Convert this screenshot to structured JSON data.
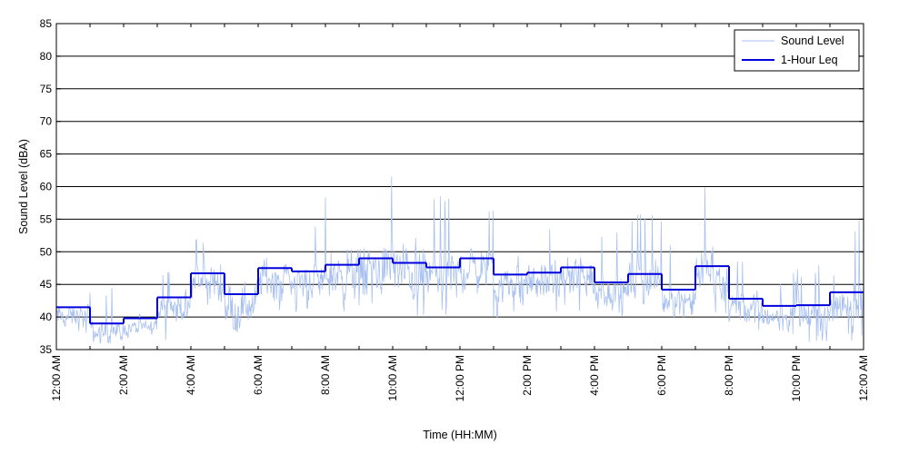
{
  "chart_data": {
    "type": "line",
    "xlabel": "Time (HH:MM)",
    "ylabel": "Sound Level (dBA)",
    "ylim": [
      35,
      85
    ],
    "yticks": [
      35,
      40,
      45,
      50,
      55,
      60,
      65,
      70,
      75,
      80,
      85
    ],
    "xlim": [
      0,
      24
    ],
    "x_tick_labels": [
      "12:00 AM",
      "2:00 AM",
      "4:00 AM",
      "6:00 AM",
      "8:00 AM",
      "10:00 AM",
      "12:00 PM",
      "2:00 PM",
      "4:00 PM",
      "6:00 PM",
      "8:00 PM",
      "10:00 PM",
      "12:00 AM"
    ],
    "grid": "horizontal",
    "legend_position": "top-right",
    "series": [
      {
        "name": "Sound Level",
        "color": "#a8c0f0",
        "style": "thin-line",
        "hourly_range_min": [
          37,
          36,
          35,
          36,
          37,
          37,
          40,
          40,
          40,
          41,
          39,
          40,
          41,
          40,
          40,
          40,
          40,
          41,
          40,
          40,
          38,
          37,
          36,
          36
        ],
        "hourly_range_max": [
          46,
          45,
          41,
          47,
          53,
          55,
          56,
          54,
          60,
          63,
          61,
          59,
          58,
          58,
          54,
          56,
          53,
          56,
          52,
          60,
          49,
          47,
          48,
          55
        ]
      },
      {
        "name": "1-Hour Leq",
        "color": "#0000dd",
        "style": "step",
        "x": [
          "12:00 AM",
          "1:00 AM",
          "2:00 AM",
          "3:00 AM",
          "4:00 AM",
          "5:00 AM",
          "6:00 AM",
          "7:00 AM",
          "8:00 AM",
          "9:00 AM",
          "10:00 AM",
          "11:00 AM",
          "12:00 PM",
          "1:00 PM",
          "2:00 PM",
          "3:00 PM",
          "4:00 PM",
          "5:00 PM",
          "6:00 PM",
          "7:00 PM",
          "8:00 PM",
          "9:00 PM",
          "10:00 PM",
          "11:00 PM"
        ],
        "values": [
          41.5,
          39.0,
          39.8,
          43.0,
          46.7,
          43.5,
          47.5,
          47.0,
          48.0,
          49.0,
          48.3,
          47.6,
          49.0,
          46.5,
          46.8,
          47.6,
          45.3,
          46.6,
          44.2,
          47.8,
          42.8,
          41.7,
          41.8,
          43.8
        ]
      }
    ]
  }
}
